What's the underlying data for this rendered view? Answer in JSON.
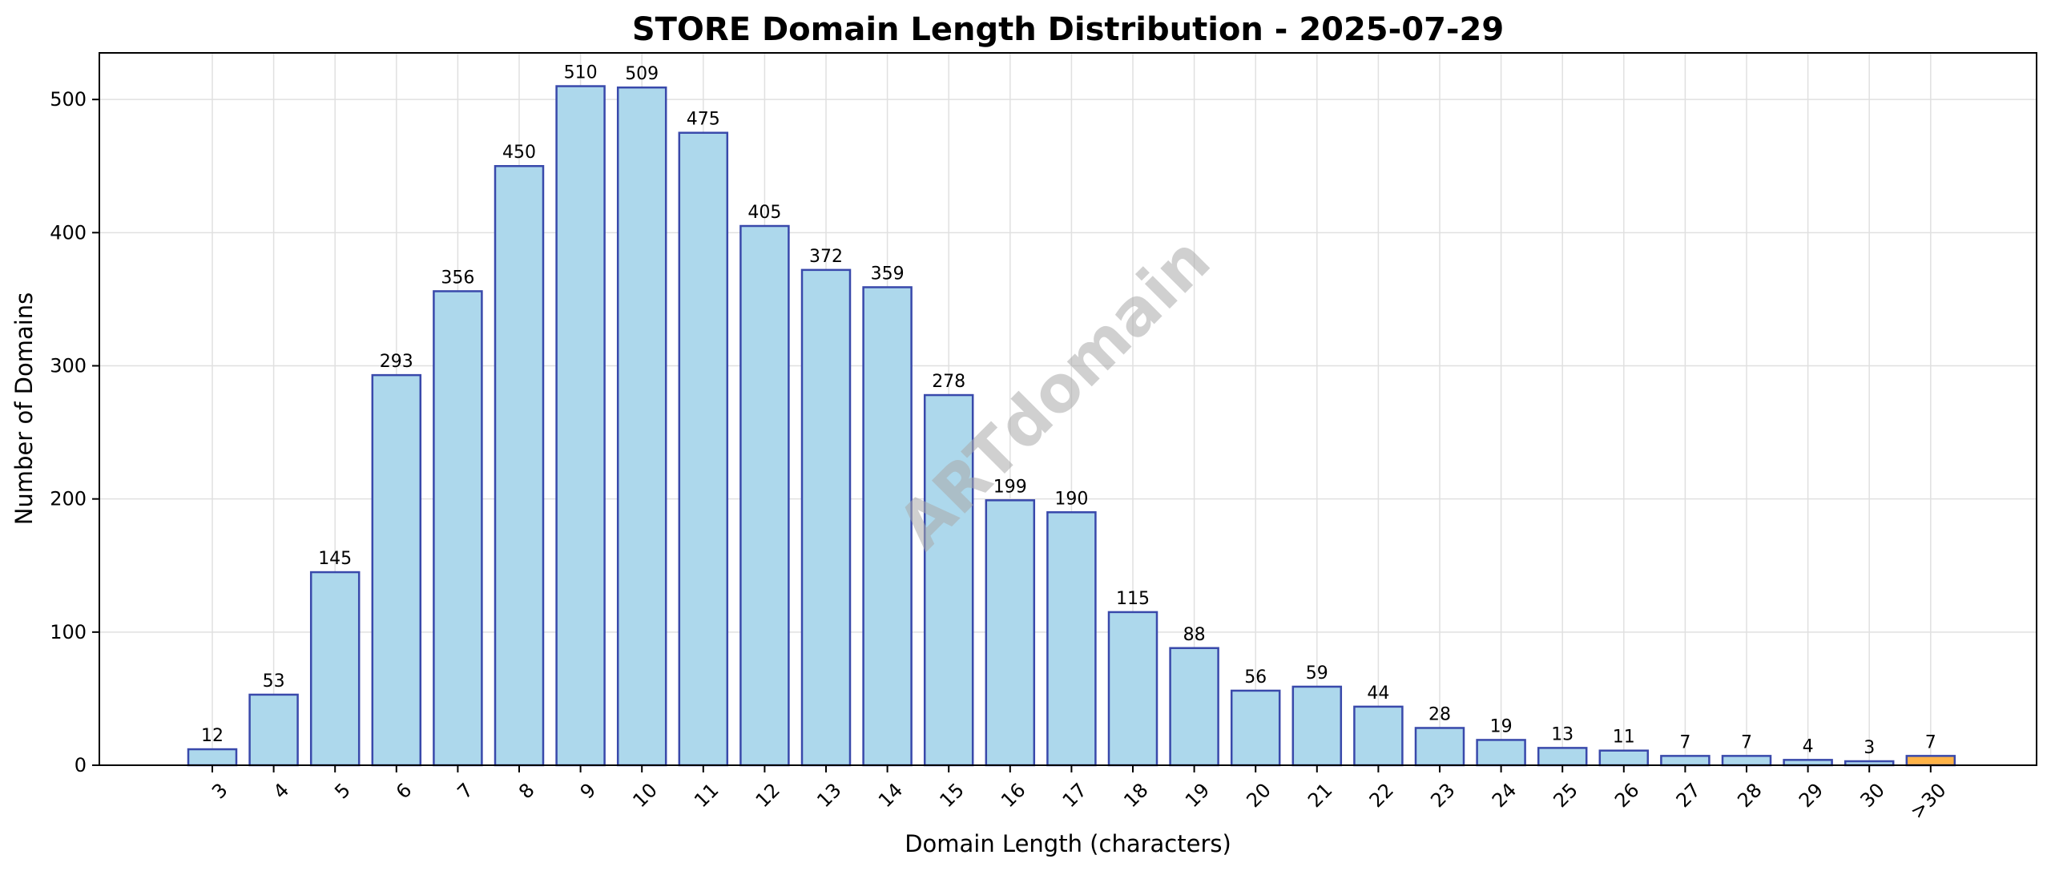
{
  "chart_data": {
    "type": "bar",
    "title": "STORE Domain Length Distribution - 2025-07-29",
    "xlabel": "Domain Length (characters)",
    "ylabel": "Number of Domains",
    "categories": [
      "3",
      "4",
      "5",
      "6",
      "7",
      "8",
      "9",
      "10",
      "11",
      "12",
      "13",
      "14",
      "15",
      "16",
      "17",
      "18",
      "19",
      "20",
      "21",
      "22",
      "23",
      "24",
      "25",
      "26",
      "27",
      "28",
      "29",
      "30",
      ">30"
    ],
    "values": [
      12,
      53,
      145,
      293,
      356,
      450,
      510,
      509,
      475,
      405,
      372,
      359,
      278,
      199,
      190,
      115,
      88,
      56,
      59,
      44,
      28,
      19,
      13,
      11,
      7,
      7,
      4,
      3,
      7
    ],
    "ylim": [
      0,
      535
    ],
    "yticks": [
      0,
      100,
      200,
      300,
      400,
      500
    ],
    "grid": true,
    "watermark": "ARTdomain",
    "colors": {
      "bar_fill": "#add8ec",
      "bar_edge": "#3949ab",
      "highlight_fill": "#ffb347",
      "highlight_edge": "#3949ab",
      "grid": "#e0e0e0"
    },
    "highlight_categories": [
      ">30"
    ]
  }
}
